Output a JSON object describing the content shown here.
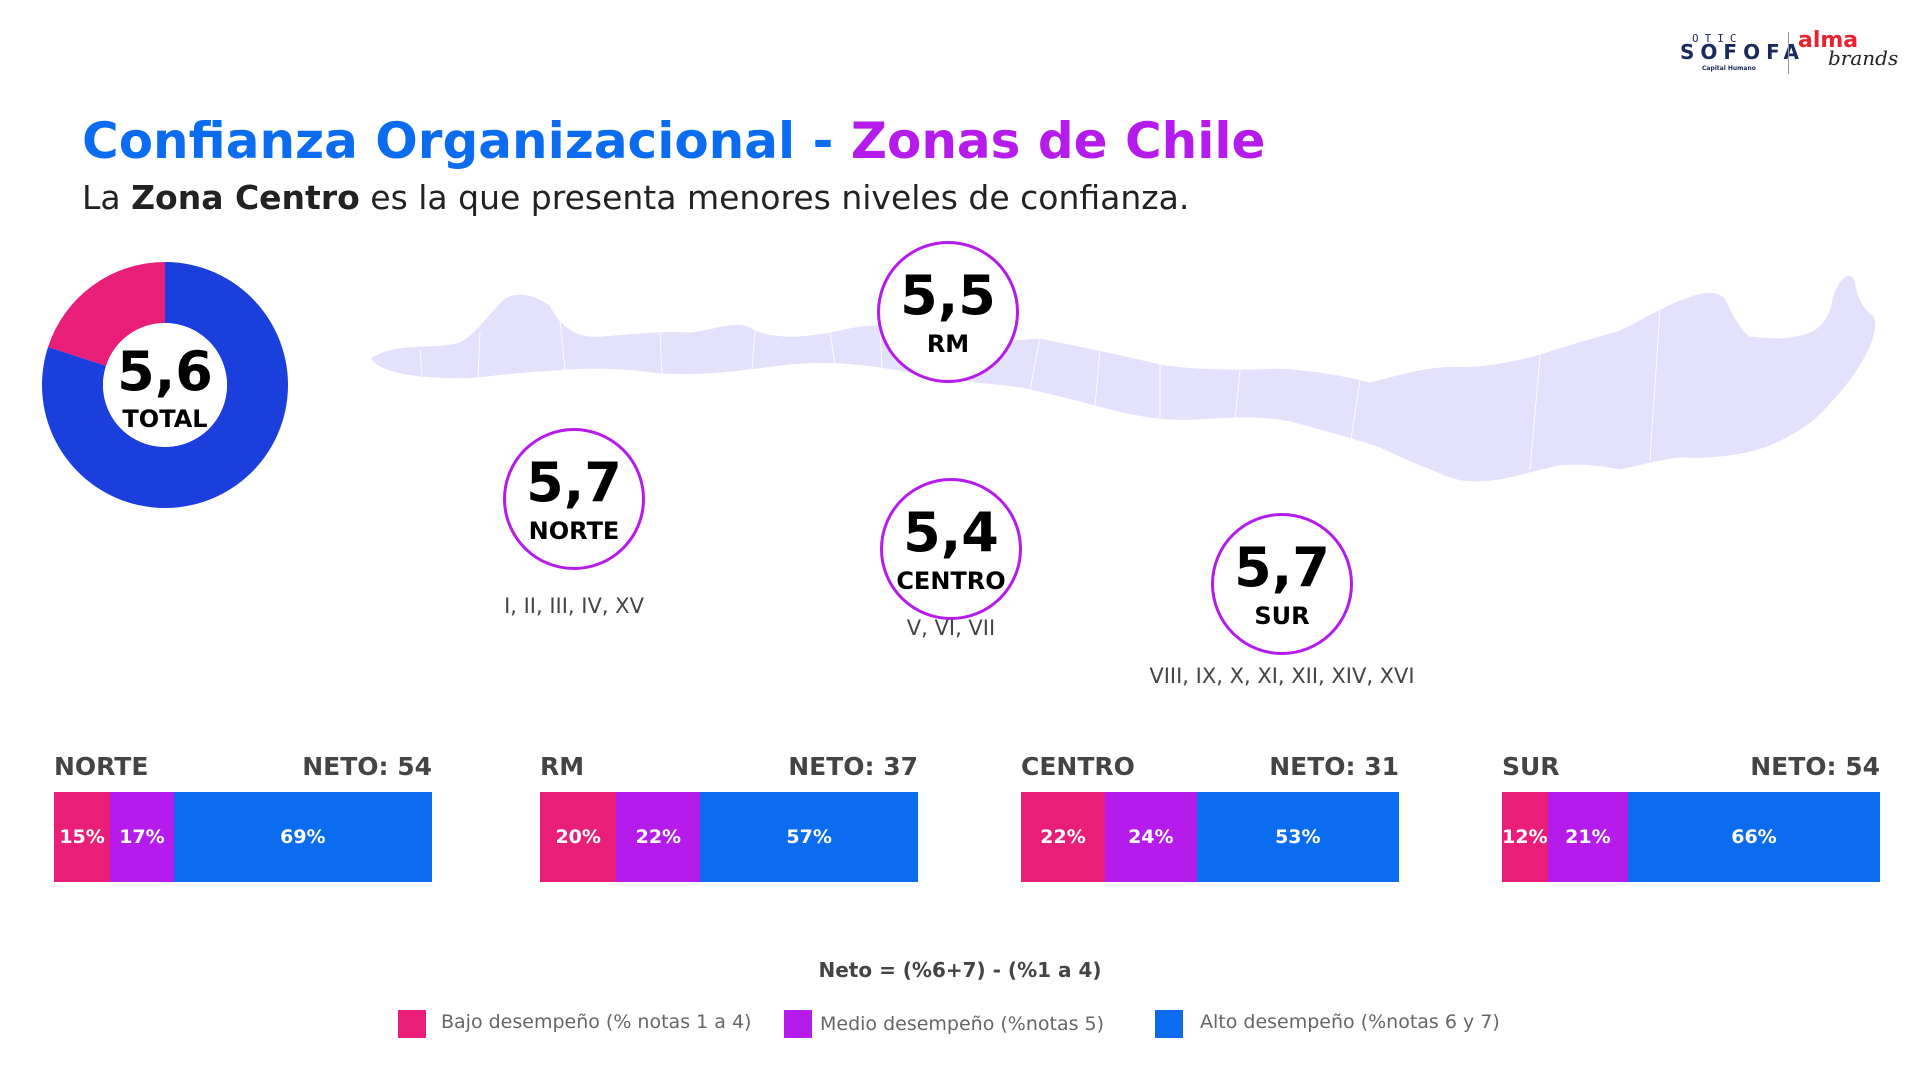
{
  "logos": {
    "otic": "OTIC",
    "sofofa": "SOFOFA",
    "capital_humano": "Capital Humano",
    "alma": "alma",
    "brands": "brands"
  },
  "title": {
    "part1": "Confianza Organizacional - ",
    "part2": "Zonas de Chile"
  },
  "subtitle": {
    "pre": "La ",
    "bold": "Zona Centro",
    "post": " es la que presenta menores niveles de confianza."
  },
  "colors": {
    "bajo": "#e91e78",
    "medio": "#b51bea",
    "alto": "#0b6cf0",
    "donut_main": "#1b3fdc",
    "map_fill": "#e3e1fb"
  },
  "chart_data": [
    {
      "type": "pie",
      "title": "TOTAL",
      "center_value": "5,6",
      "center_label": "TOTAL",
      "slices": [
        {
          "color": "#e91e78",
          "value": 20
        },
        {
          "color": "#1b3fdc",
          "value": 80
        }
      ]
    },
    {
      "type": "bar",
      "stacked": true,
      "orientation": "horizontal",
      "categories": [
        "NORTE",
        "RM",
        "CENTRO",
        "SUR"
      ],
      "neto_labels": [
        "NETO: 54",
        "NETO: 37",
        "NETO: 31",
        "NETO: 54"
      ],
      "series": [
        {
          "name": "Bajo desempeño (% notas 1 a 4)",
          "values": [
            15,
            20,
            22,
            12
          ],
          "labels": [
            "15%",
            "20%",
            "22%",
            "12%"
          ]
        },
        {
          "name": "Medio desempeño (%notas 5)",
          "values": [
            17,
            22,
            24,
            21
          ],
          "labels": [
            "17%",
            "22%",
            "24%",
            "21%"
          ]
        },
        {
          "name": "Alto desempeño (%notas 6 y 7)",
          "values": [
            69,
            57,
            53,
            66
          ],
          "labels": [
            "69%",
            "57%",
            "53%",
            "66%"
          ]
        }
      ]
    }
  ],
  "zones": {
    "norte": {
      "value": "5,7",
      "label": "NORTE",
      "regions": "I, II, III, IV, XV"
    },
    "rm": {
      "value": "5,5",
      "label": "RM"
    },
    "centro": {
      "value": "5,4",
      "label": "CENTRO",
      "regions": "V, VI, VII"
    },
    "sur": {
      "value": "5,7",
      "label": "SUR",
      "regions": "VIII, IX, X, XI, XII, XIV, XVI"
    }
  },
  "neto_definition": "Neto = (%6+7) - (%1 a 4)",
  "legend": [
    {
      "label": "Bajo desempeño (% notas 1 a 4)",
      "color": "#e91e78"
    },
    {
      "label": "Medio desempeño (%notas 5)",
      "color": "#b51bea"
    },
    {
      "label": "Alto desempeño (%notas 6 y 7)",
      "color": "#0b6cf0"
    }
  ]
}
